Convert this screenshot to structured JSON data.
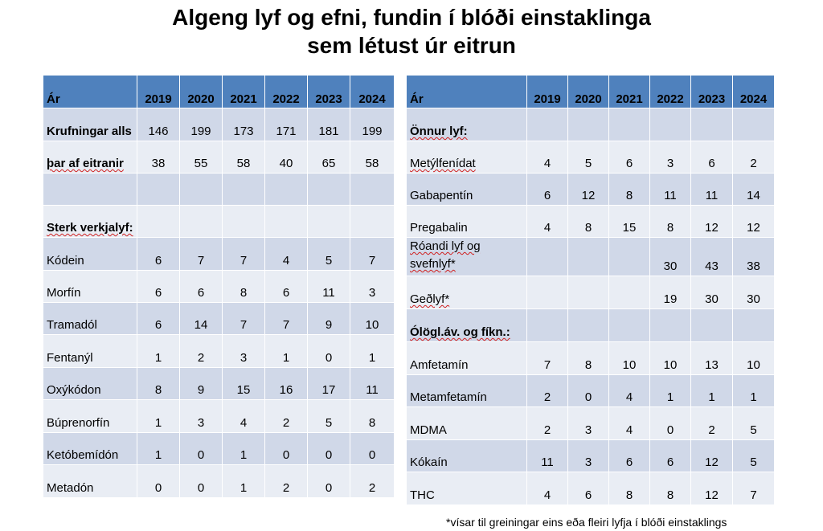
{
  "title": {
    "line1": "Algeng lyf og efni, fundin í blóði einstaklinga",
    "line2": "sem létust úr eitrun"
  },
  "left_table": {
    "header": [
      "Ár",
      "2019",
      "2020",
      "2021",
      "2022",
      "2023",
      "2024"
    ],
    "rows": [
      {
        "label": "Krufningar alls",
        "bold": true,
        "values": [
          "146",
          "199",
          "173",
          "171",
          "181",
          "199"
        ]
      },
      {
        "label": "þar af eitranir",
        "bold": true,
        "values": [
          "38",
          "55",
          "58",
          "40",
          "65",
          "58"
        ]
      },
      {
        "label": "",
        "bold": false,
        "values": [
          "",
          "",
          "",
          "",
          "",
          ""
        ]
      },
      {
        "label": "Sterk verkjalyf:",
        "bold": true,
        "values": [
          "",
          "",
          "",
          "",
          "",
          ""
        ]
      },
      {
        "label": "Kódein",
        "bold": false,
        "values": [
          "6",
          "7",
          "7",
          "4",
          "5",
          "7"
        ]
      },
      {
        "label": "Morfín",
        "bold": false,
        "values": [
          "6",
          "6",
          "8",
          "6",
          "11",
          "3"
        ]
      },
      {
        "label": "Tramadól",
        "bold": false,
        "values": [
          "6",
          "14",
          "7",
          "7",
          "9",
          "10"
        ]
      },
      {
        "label": "Fentanýl",
        "bold": false,
        "values": [
          "1",
          "2",
          "3",
          "1",
          "0",
          "1"
        ]
      },
      {
        "label": "Oxýkódon",
        "bold": false,
        "values": [
          "8",
          "9",
          "15",
          "16",
          "17",
          "11"
        ]
      },
      {
        "label": "Búprenorfín",
        "bold": false,
        "values": [
          "1",
          "3",
          "4",
          "2",
          "5",
          "8"
        ]
      },
      {
        "label": "Ketóbemídón",
        "bold": false,
        "values": [
          "1",
          "0",
          "1",
          "0",
          "0",
          "0"
        ]
      },
      {
        "label": "Metadón",
        "bold": false,
        "values": [
          "0",
          "0",
          "1",
          "2",
          "0",
          "2"
        ]
      }
    ]
  },
  "right_table": {
    "header": [
      "Ár",
      "2019",
      "2020",
      "2021",
      "2022",
      "2023",
      "2024"
    ],
    "rows": [
      {
        "label": "Önnur lyf:",
        "bold": true,
        "values": [
          "",
          "",
          "",
          "",
          "",
          ""
        ]
      },
      {
        "label": "Metýlfenídat",
        "bold": false,
        "values": [
          "4",
          "5",
          "6",
          "3",
          "6",
          "2"
        ]
      },
      {
        "label": "Gabapentín",
        "bold": false,
        "values": [
          "6",
          "12",
          "8",
          "11",
          "11",
          "14"
        ]
      },
      {
        "label": "Pregabalin",
        "bold": false,
        "values": [
          "4",
          "8",
          "15",
          "8",
          "12",
          "12"
        ]
      },
      {
        "label": "Róandi lyf og svefnlyf*",
        "bold": false,
        "values": [
          "",
          "",
          "",
          "30",
          "43",
          "38"
        ]
      },
      {
        "label": "Geðlyf*",
        "bold": false,
        "values": [
          "",
          "",
          "",
          "19",
          "30",
          "30"
        ]
      },
      {
        "label": "Ólögl.áv. og fíkn.:",
        "bold": true,
        "values": [
          "",
          "",
          "",
          "",
          "",
          ""
        ]
      },
      {
        "label": "Amfetamín",
        "bold": false,
        "values": [
          "7",
          "8",
          "10",
          "10",
          "13",
          "10"
        ]
      },
      {
        "label": "Metamfetamín",
        "bold": false,
        "values": [
          "2",
          "0",
          "4",
          "1",
          "1",
          "1"
        ]
      },
      {
        "label": "MDMA",
        "bold": false,
        "values": [
          "2",
          "3",
          "4",
          "0",
          "2",
          "5"
        ]
      },
      {
        "label": "Kókaín",
        "bold": false,
        "values": [
          "11",
          "3",
          "6",
          "6",
          "12",
          "5"
        ]
      },
      {
        "label": "THC",
        "bold": false,
        "values": [
          "4",
          "6",
          "8",
          "8",
          "12",
          "7"
        ]
      }
    ]
  },
  "footnote": "*vísar til greiningar eins eða fleiri lyfja í blóði einstaklings",
  "colors": {
    "header_bg": "#4f81bd",
    "row_dark": "#d0d8e8",
    "row_light": "#e9edf4"
  }
}
